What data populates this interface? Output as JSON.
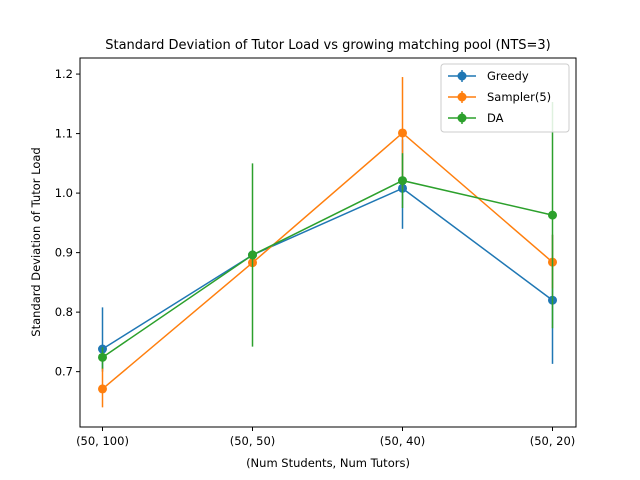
{
  "chart_data": {
    "type": "line",
    "title": "Standard Deviation of Tutor Load vs growing matching pool (NTS=3)",
    "xlabel": "(Num Students, Num Tutors)",
    "ylabel": "Standard Deviation of Tutor Load",
    "categories": [
      "(50, 100)",
      "(50, 50)",
      "(50, 40)",
      "(50, 20)"
    ],
    "ylim": [
      0.607,
      1.227
    ],
    "yticks": [
      0.7,
      0.8,
      0.9,
      1.0,
      1.1,
      1.2
    ],
    "ytick_labels": [
      "0.7",
      "0.8",
      "0.9",
      "1.0",
      "1.1",
      "1.2"
    ],
    "grid": false,
    "legend_position": "top-right",
    "series": [
      {
        "name": "Greedy",
        "color": "#1f77b4",
        "values": [
          0.738,
          0.896,
          1.008,
          0.82
        ],
        "err_low": [
          0.7,
          0.9,
          0.94,
          0.713
        ],
        "err_high": [
          0.808,
          0.896,
          1.09,
          0.93
        ]
      },
      {
        "name": "Sampler(5)",
        "color": "#ff7f0e",
        "values": [
          0.671,
          0.883,
          1.101,
          0.884
        ],
        "err_low": [
          0.64,
          0.883,
          1.006,
          0.84
        ],
        "err_high": [
          0.707,
          0.883,
          1.195,
          0.93
        ]
      },
      {
        "name": "DA",
        "color": "#2ca02c",
        "values": [
          0.724,
          0.896,
          1.021,
          0.963
        ],
        "err_low": [
          0.705,
          0.742,
          0.975,
          0.773
        ],
        "err_high": [
          0.741,
          1.05,
          1.067,
          1.153
        ]
      }
    ]
  }
}
